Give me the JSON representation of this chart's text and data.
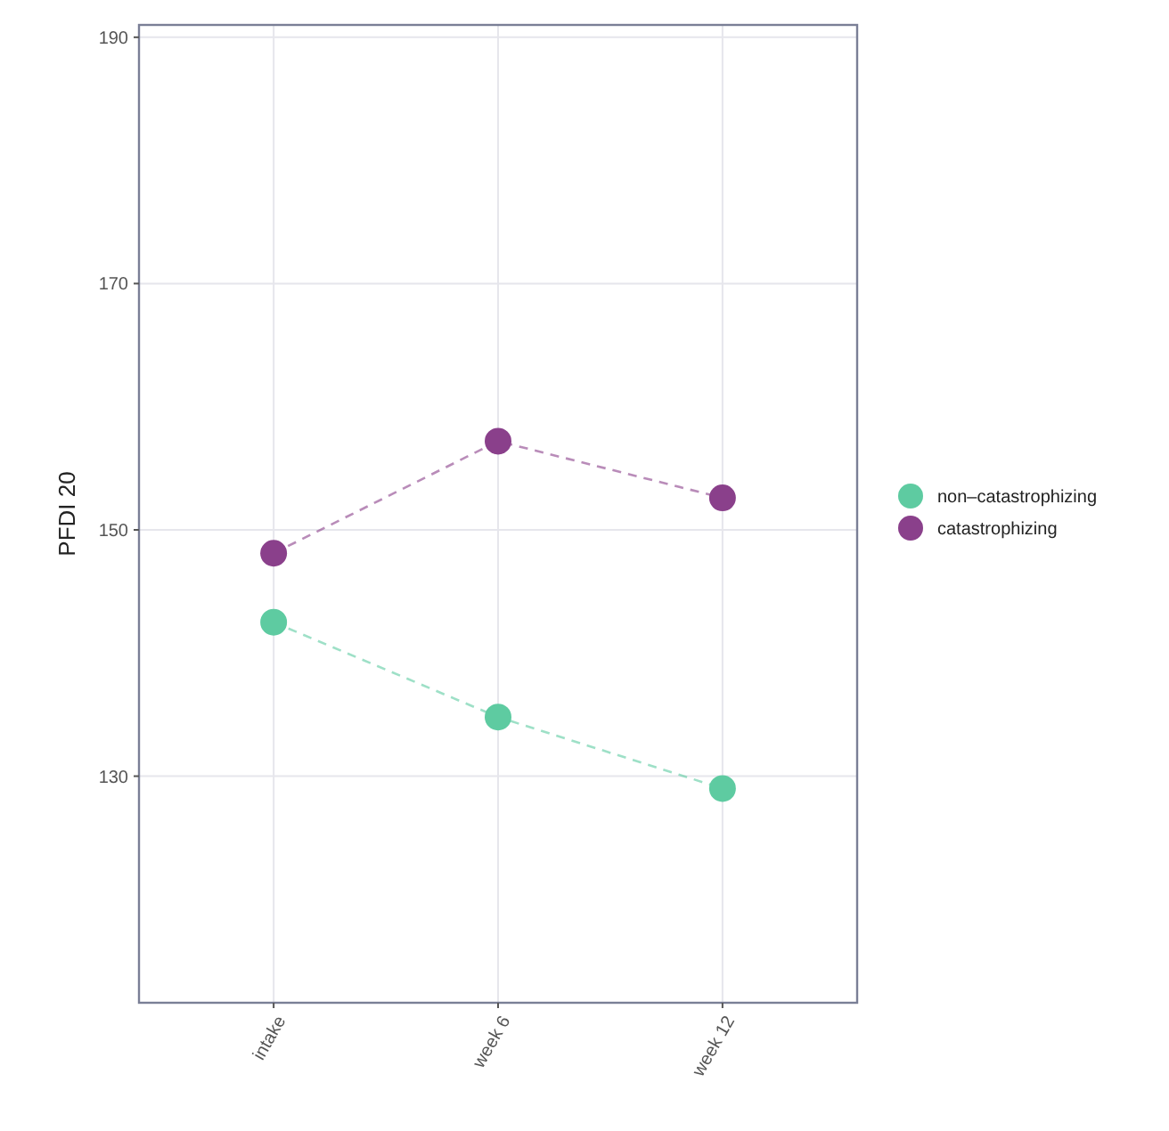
{
  "chart_data": {
    "type": "line",
    "ylabel": "PFDI 20",
    "categories": [
      "intake",
      "week 6",
      "week 12"
    ],
    "series": [
      {
        "name": "non–catastrophizing",
        "color": "#5ecba1",
        "values": [
          142.5,
          134.8,
          129.0
        ]
      },
      {
        "name": "catastrophizing",
        "color": "#8a408b",
        "values": [
          148.1,
          157.2,
          152.6
        ]
      }
    ],
    "ylim": [
      111.6,
      191
    ],
    "yticks": [
      130,
      150,
      170,
      190
    ],
    "grid": true,
    "legend": "right",
    "marker": "circle",
    "line_style": "dashed"
  }
}
